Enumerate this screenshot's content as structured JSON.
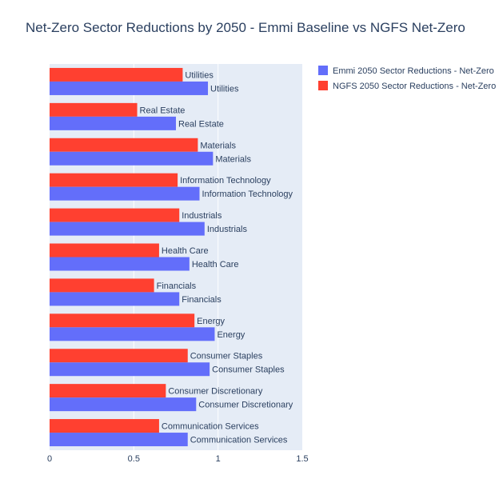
{
  "chart_data": {
    "type": "bar",
    "orientation": "horizontal",
    "title": "Net-Zero Sector Reductions by 2050 - Emmi Baseline vs NGFS Net-Zero",
    "xlabel": "",
    "ylabel": "",
    "xlim": [
      0,
      1.5
    ],
    "x_ticks": [
      "0",
      "0.5",
      "1",
      "1.5"
    ],
    "x_tick_values": [
      0,
      0.5,
      1,
      1.5
    ],
    "grid": true,
    "legend_position": "top-right",
    "categories": [
      "Utilities",
      "Real Estate",
      "Materials",
      "Information Technology",
      "Industrials",
      "Health Care",
      "Financials",
      "Energy",
      "Consumer Staples",
      "Consumer Discretionary",
      "Communication Services"
    ],
    "series": [
      {
        "name": "Emmi 2050 Sector Reductions - Net-Zero",
        "color": "#636efa",
        "values": [
          0.94,
          0.75,
          0.97,
          0.89,
          0.92,
          0.83,
          0.77,
          0.98,
          0.95,
          0.87,
          0.82
        ]
      },
      {
        "name": "NGFS 2050 Sector Reductions - Net-Zero",
        "color": "#ff4030",
        "values": [
          0.79,
          0.52,
          0.88,
          0.76,
          0.77,
          0.65,
          0.62,
          0.86,
          0.82,
          0.69,
          0.65
        ]
      }
    ],
    "plot_background": "#e5ecf6"
  }
}
